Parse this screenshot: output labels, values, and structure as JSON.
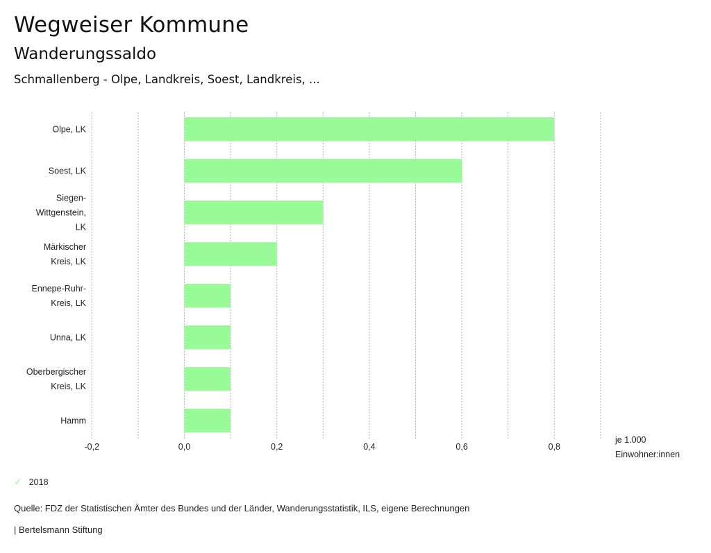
{
  "header": {
    "title": "Wegweiser Kommune",
    "subtitle": "Wanderungssaldo",
    "region": "Schmallenberg - Olpe, Landkreis, Soest, Landkreis, ..."
  },
  "unit_label": [
    "je 1.000",
    "Einwohner:innen"
  ],
  "legend": {
    "icon": "check-icon",
    "label": "2018",
    "color": "#98fb98"
  },
  "footer": {
    "source": "Quelle: FDZ der Statistischen Ämter des Bundes und der Länder, Wanderungsstatistik, ILS, eigene Berechnungen",
    "credit": "| Bertelsmann Stiftung"
  },
  "chart_data": {
    "type": "bar",
    "orientation": "horizontal",
    "title": "Wanderungssaldo",
    "xlabel": "je 1.000 Einwohner:innen",
    "ylabel": "",
    "categories": [
      [
        "Olpe, LK"
      ],
      [
        "Soest, LK"
      ],
      [
        "Siegen-",
        "Wittgenstein,",
        "LK"
      ],
      [
        "Märkischer",
        "Kreis, LK"
      ],
      [
        "Ennepe-Ruhr-",
        "Kreis, LK"
      ],
      [
        "Unna, LK"
      ],
      [
        "Oberbergischer",
        "Kreis, LK"
      ],
      [
        "Hamm"
      ]
    ],
    "series": [
      {
        "name": "2018",
        "color": "#98fb98",
        "values": [
          0.8,
          0.6,
          0.3,
          0.2,
          0.1,
          0.1,
          0.1,
          0.1
        ]
      }
    ],
    "xlim": [
      -0.2,
      0.9
    ],
    "xticks": [
      -0.2,
      0.0,
      0.2,
      0.4,
      0.6,
      0.8
    ],
    "xtick_labels": [
      "-0,2",
      "0,0",
      "0,2",
      "0,4",
      "0,6",
      "0,8"
    ],
    "gridlines": [
      -0.2,
      -0.1,
      0.0,
      0.1,
      0.2,
      0.3,
      0.4,
      0.5,
      0.6,
      0.7,
      0.8,
      0.9
    ],
    "grid": true,
    "legend_position": "bottom-left"
  }
}
